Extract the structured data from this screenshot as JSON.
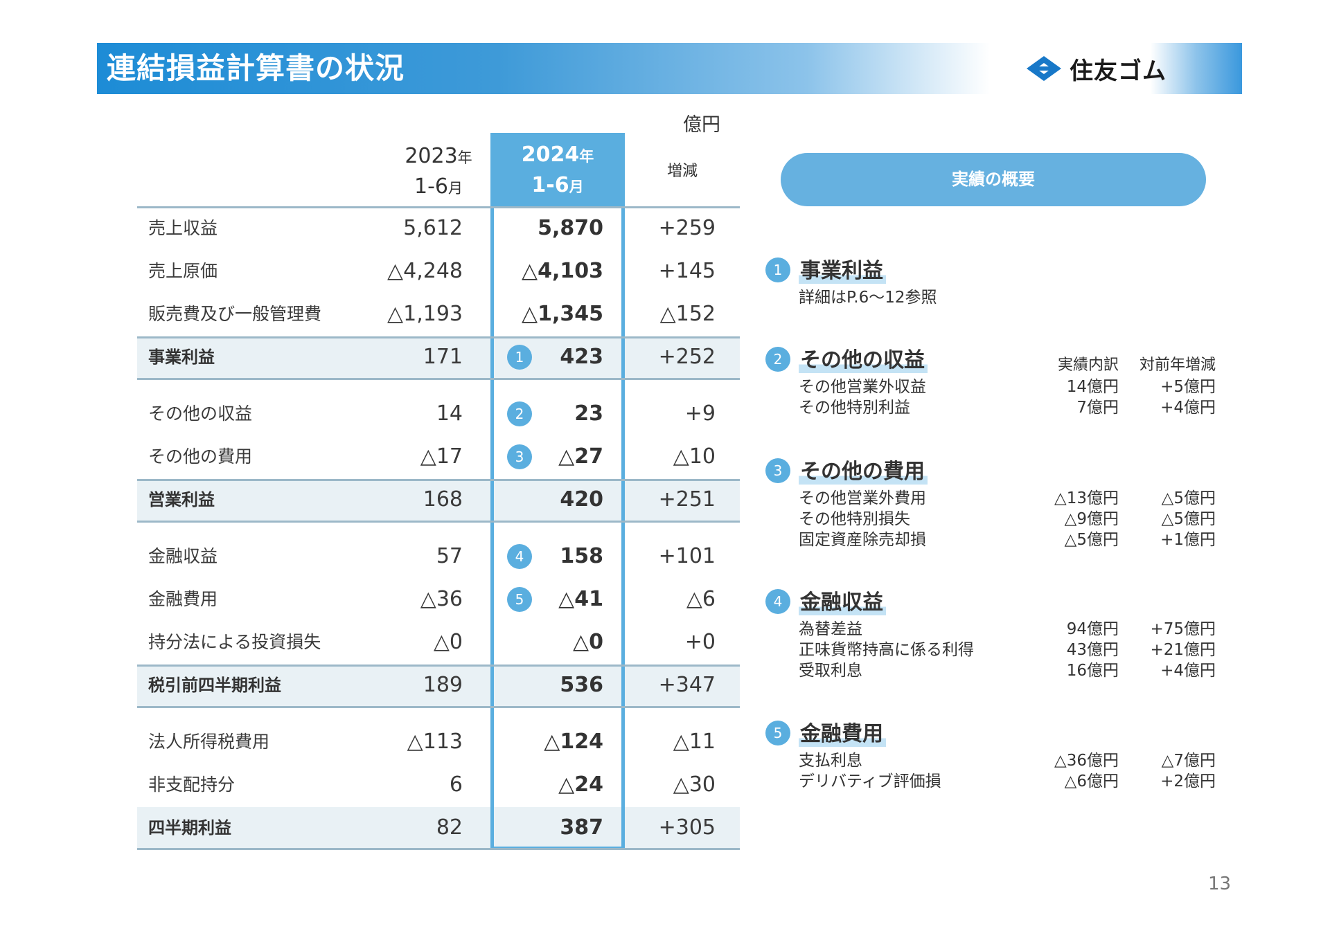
{
  "header": {
    "title": "連結損益計算書の状況",
    "logo_text": "住友ゴム"
  },
  "unit": "億円",
  "table": {
    "col_2023": {
      "year": "2023",
      "year_suffix": "年",
      "period": "1-6",
      "period_suffix": "月"
    },
    "col_2024": {
      "year": "2024",
      "year_suffix": "年",
      "period": "1-6",
      "period_suffix": "月"
    },
    "col_diff": "増減",
    "rows": [
      {
        "label": "売上収益",
        "v2023": "5,612",
        "v2024": "5,870",
        "diff": "+259",
        "badge": ""
      },
      {
        "label": "売上原価",
        "v2023": "△4,248",
        "v2024": "△4,103",
        "diff": "+145",
        "badge": ""
      },
      {
        "label": "販売費及び一般管理費",
        "v2023": "△1,193",
        "v2024": "△1,345",
        "diff": "△152",
        "badge": ""
      },
      {
        "label": "事業利益",
        "v2023": "171",
        "v2024": "423",
        "diff": "+252",
        "badge": "1"
      },
      {
        "label": "その他の収益",
        "v2023": "14",
        "v2024": "23",
        "diff": "+9",
        "badge": "2"
      },
      {
        "label": "その他の費用",
        "v2023": "△17",
        "v2024": "△27",
        "diff": "△10",
        "badge": "3"
      },
      {
        "label": "営業利益",
        "v2023": "168",
        "v2024": "420",
        "diff": "+251",
        "badge": ""
      },
      {
        "label": "金融収益",
        "v2023": "57",
        "v2024": "158",
        "diff": "+101",
        "badge": "4"
      },
      {
        "label": "金融費用",
        "v2023": "△36",
        "v2024": "△41",
        "diff": "△6",
        "badge": "5"
      },
      {
        "label": "持分法による投資損失",
        "v2023": "△0",
        "v2024": "△0",
        "diff": "+0",
        "badge": ""
      },
      {
        "label": "税引前四半期利益",
        "v2023": "189",
        "v2024": "536",
        "diff": "+347",
        "badge": ""
      },
      {
        "label": "法人所得税費用",
        "v2023": "△113",
        "v2024": "△124",
        "diff": "△11",
        "badge": ""
      },
      {
        "label": "非支配持分",
        "v2023": "6",
        "v2024": "△24",
        "diff": "△30",
        "badge": ""
      },
      {
        "label": "四半期利益",
        "v2023": "82",
        "v2024": "387",
        "diff": "+305",
        "badge": ""
      }
    ]
  },
  "summary": {
    "title": "実績の概要",
    "col_headers": {
      "breakdown": "実績内訳",
      "yoy": "対前年増減"
    },
    "sections": [
      {
        "num": "1",
        "title": "事業利益",
        "lines": [
          {
            "label": "詳細はP.6～12参照",
            "v1": "",
            "v2": ""
          }
        ]
      },
      {
        "num": "2",
        "title": "その他の収益",
        "lines": [
          {
            "label": "その他営業外収益",
            "v1": "14億円",
            "v2": "+5億円"
          },
          {
            "label": "その他特別利益",
            "v1": "7億円",
            "v2": "+4億円"
          }
        ]
      },
      {
        "num": "3",
        "title": "その他の費用",
        "lines": [
          {
            "label": "その他営業外費用",
            "v1": "△13億円",
            "v2": "△5億円"
          },
          {
            "label": "その他特別損失",
            "v1": "△9億円",
            "v2": "△5億円"
          },
          {
            "label": "固定資産除売却損",
            "v1": "△5億円",
            "v2": "+1億円"
          }
        ]
      },
      {
        "num": "4",
        "title": "金融収益",
        "lines": [
          {
            "label": "為替差益",
            "v1": "94億円",
            "v2": "+75億円"
          },
          {
            "label": "正味貨幣持高に係る利得",
            "v1": "43億円",
            "v2": "+21億円"
          },
          {
            "label": "受取利息",
            "v1": "16億円",
            "v2": "+4億円"
          }
        ]
      },
      {
        "num": "5",
        "title": "金融費用",
        "lines": [
          {
            "label": "支払利息",
            "v1": "△36億円",
            "v2": "△7億円"
          },
          {
            "label": "デリバティブ評価損",
            "v1": "△6億円",
            "v2": "+2億円"
          }
        ]
      }
    ]
  },
  "page_number": "13",
  "colors": {
    "accent": "#5aaedf",
    "header_blue": "#1d8cd6",
    "row_shade": "#e9f1f5"
  }
}
